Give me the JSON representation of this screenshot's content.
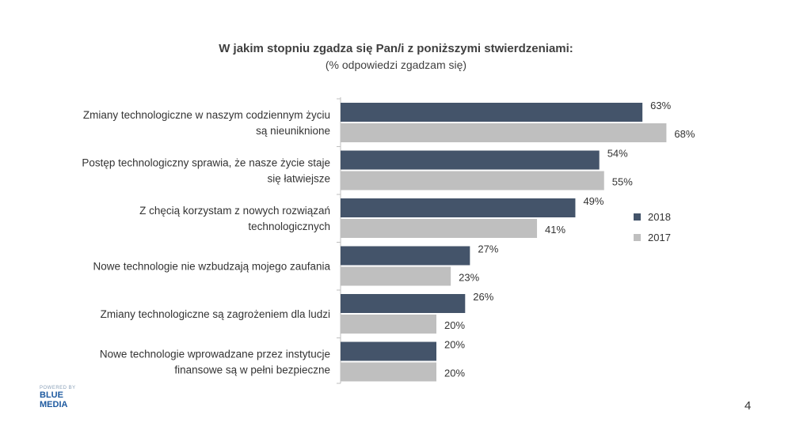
{
  "chart_data": {
    "type": "bar",
    "orientation": "horizontal",
    "title": "W jakim stopniu zgadza się Pan/i z poniższymi stwierdzeniami:",
    "subtitle": "(% odpowiedzi zgadzam się)",
    "categories": [
      [
        "Zmiany technologiczne w naszym codziennym życiu",
        "są nieuniknione"
      ],
      [
        "Postęp technologiczny sprawia, że nasze życie staje",
        "się łatwiejsze"
      ],
      [
        "Z chęcią korzystam z nowych rozwiązań",
        "technologicznych"
      ],
      [
        "Nowe technologie nie wzbudzają mojego zaufania"
      ],
      [
        "Zmiany technologiczne są zagrożeniem dla ludzi"
      ],
      [
        "Nowe technologie wprowadzane przez instytucje",
        "finansowe są w pełni bezpieczne"
      ]
    ],
    "series": [
      {
        "name": "2018",
        "color": "#44546a",
        "values": [
          63,
          54,
          49,
          27,
          26,
          20
        ]
      },
      {
        "name": "2017",
        "color": "#bfbfbf",
        "values": [
          68,
          55,
          41,
          23,
          20,
          20
        ]
      }
    ],
    "value_suffix": "%",
    "xlim": [
      0,
      100
    ],
    "grid": false,
    "legend": "right"
  },
  "branding": {
    "powered_by": "POWERED BY",
    "line1": "BLUE",
    "line2": "MEDIA"
  },
  "page_number": "4"
}
